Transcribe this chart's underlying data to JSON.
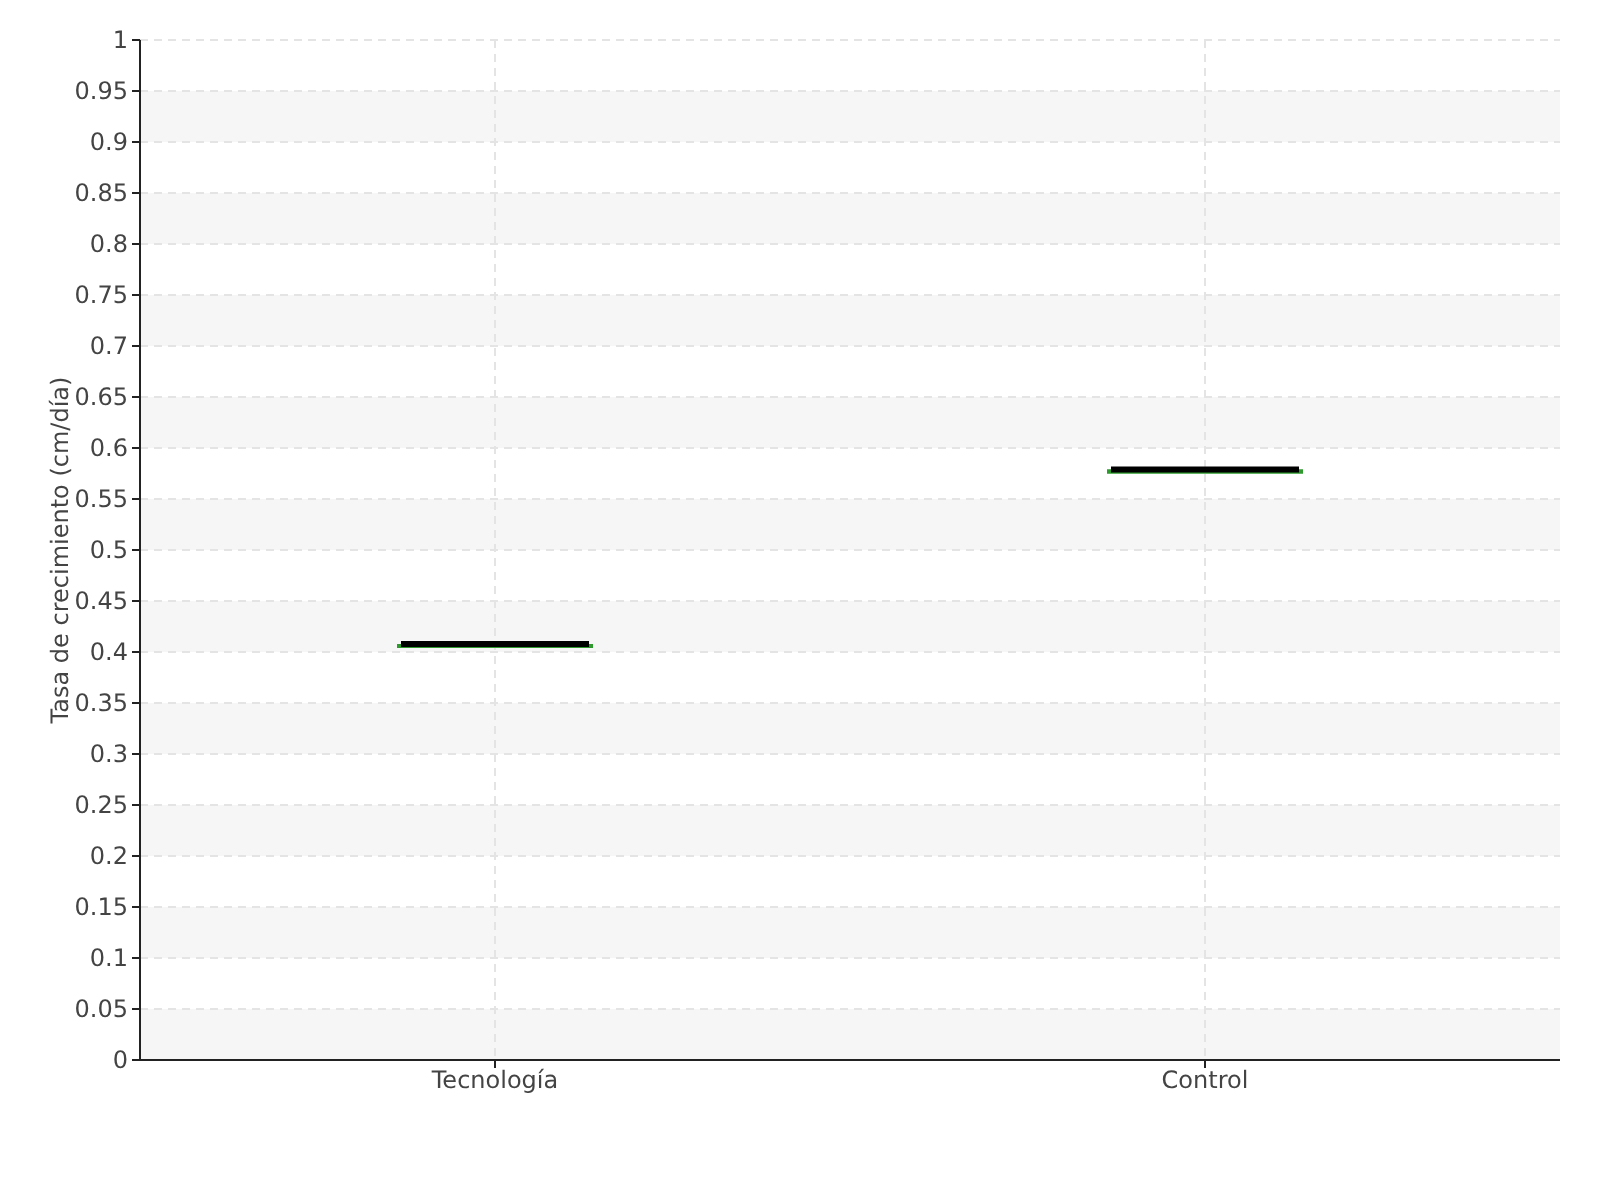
{
  "chart_data": {
    "type": "box",
    "ylabel": "Tasa de crecimiento (cm/día)",
    "categories": [
      "Tecnología",
      "Control"
    ],
    "boxes": [
      {
        "low": 0.406,
        "q1": 0.406,
        "median": 0.406,
        "q3": 0.406,
        "high": 0.406
      },
      {
        "low": 0.577,
        "q1": 0.577,
        "median": 0.577,
        "q3": 0.577,
        "high": 0.577
      }
    ],
    "color": "#2e9a2e",
    "ylim": [
      0,
      1
    ],
    "yticks": [
      0,
      0.05,
      0.1,
      0.15,
      0.2,
      0.25,
      0.3,
      0.35,
      0.4,
      0.45,
      0.5,
      0.55,
      0.6,
      0.65,
      0.7,
      0.75,
      0.8,
      0.85,
      0.9,
      0.95,
      1
    ],
    "grid": true
  }
}
